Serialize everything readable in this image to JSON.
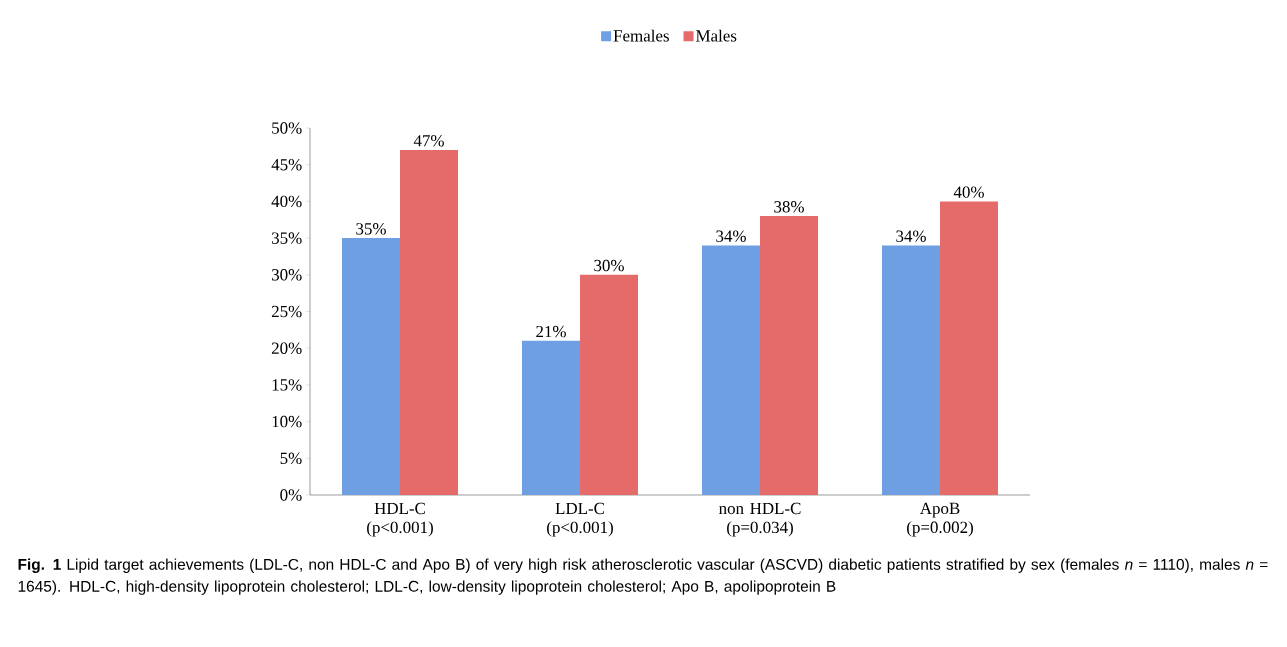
{
  "chart_data": {
    "type": "bar",
    "categories": [
      "HDL-C (p<0.001)",
      "LDL-C (p<0.001)",
      "non HDL-C (p=0.034)",
      "ApoB (p=0.002)"
    ],
    "series": [
      {
        "name": "Females",
        "color": "#6f9fe3",
        "values": [
          35,
          21,
          34,
          34
        ],
        "value_labels": [
          "35%",
          "21%",
          "34%",
          "34%"
        ]
      },
      {
        "name": "Males",
        "color": "#e56b6b",
        "values": [
          47,
          30,
          38,
          40
        ],
        "value_labels": [
          "47%",
          "30%",
          "38%",
          "40%"
        ]
      }
    ],
    "ylim": [
      0,
      50
    ],
    "yticks": [
      {
        "value": 0,
        "label": "0%"
      },
      {
        "value": 5,
        "label": "5%"
      },
      {
        "value": 10,
        "label": "10%"
      },
      {
        "value": 15,
        "label": "15%"
      },
      {
        "value": 20,
        "label": "20%"
      },
      {
        "value": 25,
        "label": "25%"
      },
      {
        "value": 30,
        "label": "30%"
      },
      {
        "value": 35,
        "label": "35%"
      },
      {
        "value": 40,
        "label": "40%"
      },
      {
        "value": 45,
        "label": "45%"
      },
      {
        "value": 50,
        "label": "50%"
      }
    ],
    "legend": "top",
    "annotations": [
      "**Fig. 1** Lipid target achievements (LDL-C, non HDL-C and Apo B) of very high risk atherosclerotic vascular (ASCVD) diabetic patients stratified by sex (females *n* = 1110), males *n* = 1645). HDL-C, high-density lipoprotein cholesterol; LDL-C, low-density lipoprotein cholesterol; Apo B, apolipoprotein B"
    ]
  }
}
